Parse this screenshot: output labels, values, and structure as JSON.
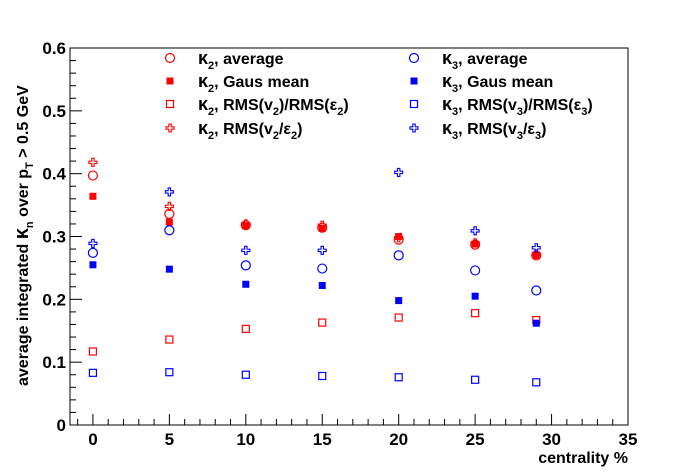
{
  "chart_data": {
    "type": "scatter",
    "xlabel": "centrality %",
    "ylabel": {
      "pre": "average integrated  ",
      "kappa": "κ",
      "kappa_sub": "n",
      "mid": " over p",
      "p_sub": "T",
      "post": " > 0.5 GeV"
    },
    "xlim": [
      -1.5,
      35
    ],
    "ylim": [
      0,
      0.6
    ],
    "x_ticks": [
      "0",
      "5",
      "10",
      "15",
      "20",
      "25",
      "30",
      "35"
    ],
    "y_ticks": [
      "0",
      "0.1",
      "0.2",
      "0.3",
      "0.4",
      "0.5",
      "0.6"
    ],
    "grid": false,
    "legend_position": "top",
    "series": [
      {
        "key": "k2avg",
        "name": {
          "main": "κ",
          "sub": "2",
          "rest": ", average"
        },
        "color": "#ff0000",
        "marker": "open-circle",
        "x": [
          0,
          5,
          10,
          15,
          20,
          25,
          29
        ],
        "y": [
          0.397,
          0.336,
          0.318,
          0.314,
          0.295,
          0.287,
          0.27
        ]
      },
      {
        "key": "k2gaus",
        "name": {
          "main": "κ",
          "sub": "2",
          "rest": ", Gaus mean"
        },
        "color": "#ff0000",
        "marker": "filled-square",
        "x": [
          0,
          5,
          10,
          15,
          20,
          25,
          29
        ],
        "y": [
          0.364,
          0.323,
          0.317,
          0.313,
          0.3,
          0.288,
          0.27
        ]
      },
      {
        "key": "k2rms",
        "name": {
          "main": "κ",
          "sub": "2",
          "rest": ", RMS(v",
          "sub2": "2",
          "rest2": ")/RMS(ε",
          "sub3": "2",
          "rest3": ")"
        },
        "color": "#ff0000",
        "marker": "open-square",
        "x": [
          0,
          5,
          10,
          15,
          20,
          25,
          29
        ],
        "y": [
          0.117,
          0.136,
          0.153,
          0.163,
          0.171,
          0.178,
          0.167
        ]
      },
      {
        "key": "k2rmsr",
        "name": {
          "main": "κ",
          "sub": "2",
          "rest": ", RMS(v",
          "sub2": "2",
          "rest2": "/ε",
          "sub3": "2",
          "rest3": ")"
        },
        "color": "#ff0000",
        "marker": "open-cross",
        "x": [
          0,
          5,
          10,
          15,
          20,
          25,
          29
        ],
        "y": [
          0.418,
          0.348,
          0.32,
          0.318,
          0.298,
          0.29,
          0.272
        ]
      },
      {
        "key": "k3avg",
        "name": {
          "main": "κ",
          "sub": "3",
          "rest": ", average"
        },
        "color": "#0000ff",
        "marker": "open-circle",
        "x": [
          0,
          5,
          10,
          15,
          20,
          25,
          29
        ],
        "y": [
          0.274,
          0.31,
          0.254,
          0.249,
          0.27,
          0.246,
          0.214
        ]
      },
      {
        "key": "k3gaus",
        "name": {
          "main": "κ",
          "sub": "3",
          "rest": ", Gaus mean"
        },
        "color": "#0000ff",
        "marker": "filled-square",
        "x": [
          0,
          5,
          10,
          15,
          20,
          25,
          29
        ],
        "y": [
          0.255,
          0.248,
          0.224,
          0.222,
          0.198,
          0.205,
          0.162
        ]
      },
      {
        "key": "k3rms",
        "name": {
          "main": "κ",
          "sub": "3",
          "rest": ", RMS(v",
          "sub2": "3",
          "rest2": ")/RMS(ε",
          "sub3": "3",
          "rest3": ")"
        },
        "color": "#0000ff",
        "marker": "open-square",
        "x": [
          0,
          5,
          10,
          15,
          20,
          25,
          29
        ],
        "y": [
          0.083,
          0.084,
          0.08,
          0.078,
          0.076,
          0.072,
          0.068
        ]
      },
      {
        "key": "k3rmsr",
        "name": {
          "main": "κ",
          "sub": "3",
          "rest": ", RMS(v",
          "sub2": "3",
          "rest2": "/ε",
          "sub3": "3",
          "rest3": ")"
        },
        "color": "#0000ff",
        "marker": "open-cross",
        "x": [
          0,
          5,
          10,
          15,
          20,
          25,
          29
        ],
        "y": [
          0.289,
          0.371,
          0.278,
          0.278,
          0.402,
          0.309,
          0.282
        ]
      }
    ]
  }
}
